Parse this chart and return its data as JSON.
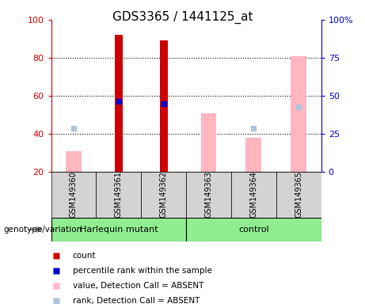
{
  "title": "GDS3365 / 1441125_at",
  "samples": [
    "GSM149360",
    "GSM149361",
    "GSM149362",
    "GSM149363",
    "GSM149364",
    "GSM149365"
  ],
  "count_values": [
    null,
    92,
    89,
    null,
    null,
    null
  ],
  "rank_values": [
    null,
    57,
    56,
    null,
    null,
    null
  ],
  "absent_value": [
    31,
    null,
    null,
    51,
    38,
    81
  ],
  "absent_rank": [
    43,
    null,
    null,
    null,
    43,
    54
  ],
  "ylim_left": [
    20,
    100
  ],
  "ylim_right": [
    0,
    100
  ],
  "yticks_left": [
    20,
    40,
    60,
    80,
    100
  ],
  "yticks_right": [
    0,
    25,
    50,
    75,
    100
  ],
  "yticklabels_right": [
    "0",
    "25",
    "50",
    "75",
    "100%"
  ],
  "left_axis_color": "#CC0000",
  "right_axis_color": "#0000CC",
  "count_color": "#CC0000",
  "rank_color": "#0000CC",
  "absent_value_color": "#FFB6C1",
  "absent_rank_color": "#B0C4DE",
  "label_area_bg": "#D3D3D3",
  "green_color": "#90EE90",
  "genotype_label": "genotype/variation",
  "harlequin_label": "Harlequin mutant",
  "control_label": "control",
  "legend_items": [
    [
      "#CC0000",
      "count"
    ],
    [
      "#0000CC",
      "percentile rank within the sample"
    ],
    [
      "#FFB6C1",
      "value, Detection Call = ABSENT"
    ],
    [
      "#B0C4DE",
      "rank, Detection Call = ABSENT"
    ]
  ]
}
